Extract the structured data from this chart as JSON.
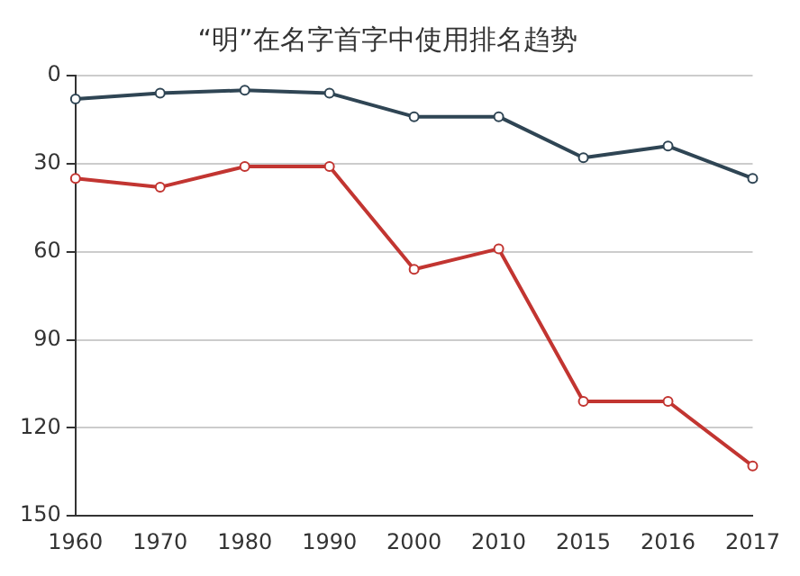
{
  "chart_data": {
    "type": "line",
    "title": "“明”在名字首字中使用排名趋势",
    "categories": [
      "1960",
      "1970",
      "1980",
      "1990",
      "2000",
      "2010",
      "2015",
      "2016",
      "2017"
    ],
    "series": [
      {
        "color": "#2f4554",
        "values": [
          8,
          6,
          5,
          6,
          14,
          14,
          28,
          24,
          35
        ]
      },
      {
        "color": "#c23531",
        "values": [
          35,
          38,
          31,
          31,
          66,
          59,
          111,
          111,
          133
        ]
      }
    ],
    "ylim": [
      150,
      0
    ],
    "yticks": [
      0,
      30,
      60,
      90,
      120,
      150
    ],
    "grid": "y",
    "legend": false,
    "marker": "circle",
    "line_style": "solid"
  }
}
